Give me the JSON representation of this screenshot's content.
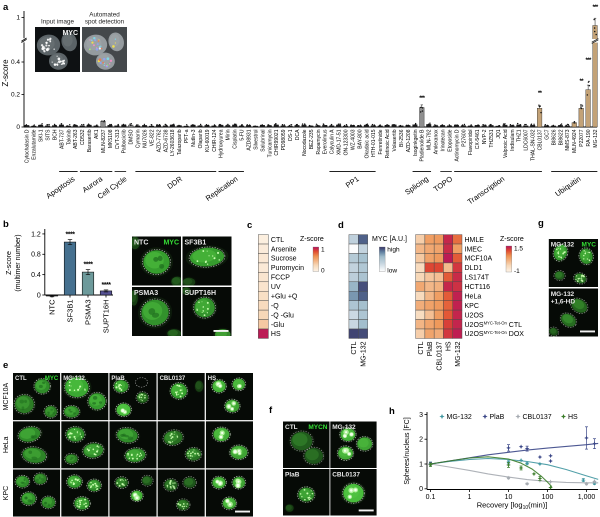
{
  "panels": {
    "a": {
      "label": "a"
    },
    "b": {
      "label": "b"
    },
    "c": {
      "label": "c"
    },
    "d": {
      "label": "d"
    },
    "e": {
      "label": "e"
    },
    "f": {
      "label": "f"
    },
    "g": {
      "label": "g"
    },
    "h": {
      "label": "h"
    }
  },
  "colors": {
    "bar_dark": "#1c1c1e",
    "bar_gray": "#8f8f8f",
    "bar_tan": "#c3a277",
    "b_bars": [
      "#1c1c1e",
      "#45708f",
      "#6d9a9b",
      "#565295"
    ],
    "h_series": [
      "#3f96a0",
      "#3a4687",
      "#a5aab0",
      "#3b7d2a"
    ],
    "micro_green": "#3fae36",
    "micro_label_green": "#35e035"
  },
  "panel_a_inset": {
    "left_title": "Input image",
    "right_title_line1": "Automated",
    "right_title_line2": "spot detection",
    "overlay_label": "MYC"
  },
  "chart_data": [
    {
      "id": "a",
      "type": "bar",
      "ylabel": "Z-score",
      "yticks": [
        {
          "v": 0,
          "t": "0"
        },
        {
          "v": 0.2,
          "t": "0.2"
        },
        {
          "v": 0.4,
          "t": "0.4"
        },
        {
          "v": 1,
          "t": "1"
        }
      ],
      "axis_break": true,
      "categories": [
        "Cytochalasin D",
        "Enzalutamide",
        "SKI-1",
        "SITS",
        "BCH",
        "ABT-737",
        "Takinib",
        "ABT-263",
        "CD532",
        "Barasertib",
        "AK1",
        "MLN-8237",
        "MK5108",
        "CVT-313",
        "Palbociclib",
        "DMSO",
        "Cymarin",
        "NU7026",
        "VE-822",
        "AZD-7762",
        "AZD-6738",
        "LY-2603618",
        "Talazoparib",
        "PFT-a",
        "Nutlin-3",
        "Olaparib",
        "KU-60019",
        "CHIR-124",
        "Hydroxyurea",
        "Mirin",
        "Cisplatin",
        "5-FU",
        "AZD8931",
        "Silvestrol",
        "Salubrinal",
        "Tunicamycin",
        "CHIR99021",
        "PD98059",
        "DS-1",
        "DCA",
        "Nocodazole",
        "BEZ-235",
        "Rapamycin",
        "Everolimus",
        "Calyculin A",
        "XMD-17-51",
        "ON-123300",
        "WZ-4003",
        "BAY-800",
        "Okadaic acid",
        "HTH-01-015",
        "Fenretinide",
        "Retinoic Acid",
        "Volasertib",
        "BI-2536",
        "AZD-1208",
        "Isoginkgetin",
        "Pladienolide B",
        "MLN-792",
        "Amlexanox",
        "Irinotecan",
        "Etoposide",
        "Actinomycin D",
        "P27600",
        "Flavopiridol",
        "CX-5461",
        "NVP-2",
        "THZ531",
        "JQ1",
        "Valproic Acid",
        "Indisulam",
        "THZ1",
        "LDC6007",
        "THAL-SN-032",
        "CBL0137",
        "GC7",
        "BI8626",
        "BI8622",
        "NMS-873",
        "MLN-4924",
        "P22077",
        "RA-190",
        "MG-132"
      ],
      "values": [
        0.01,
        0.006,
        0.012,
        0.007,
        0.009,
        0.013,
        0.006,
        0.01,
        0.008,
        0.012,
        0.007,
        0.035,
        0.011,
        0.008,
        0.013,
        0.012,
        0.007,
        0.01,
        0.006,
        0.011,
        0.008,
        0.013,
        0.009,
        0.006,
        0.012,
        0.008,
        0.01,
        0.007,
        0.012,
        0.009,
        0.013,
        0.007,
        0.01,
        0.006,
        0.011,
        0.009,
        0.013,
        0.008,
        0.006,
        0.01,
        0.012,
        0.007,
        0.009,
        0.011,
        0.008,
        0.013,
        0.006,
        0.01,
        0.008,
        0.012,
        0.009,
        0.007,
        0.011,
        0.013,
        0.008,
        0.01,
        0.014,
        0.12,
        0.016,
        0.007,
        0.01,
        0.008,
        0.012,
        0.009,
        0.007,
        0.011,
        0.008,
        0.01,
        0.006,
        0.012,
        0.009,
        0.013,
        0.008,
        0.011,
        0.115,
        0.009,
        0.007,
        0.01,
        0.008,
        0.027,
        0.115,
        0.23,
        0.95
      ],
      "bar_style": {
        "11": "gray",
        "15": "gray",
        "57": "gray",
        "74": "tan",
        "79": "tan",
        "80": "tan",
        "81": "tan",
        "82": "tan"
      },
      "errors": {
        "57": 0.016,
        "74": 0.013,
        "80": 0.022,
        "81": 0.028,
        "82": 0.045
      },
      "sig": {
        "57": "***",
        "74": "**",
        "80": "**",
        "81": "***",
        "82": "***"
      },
      "groups": [
        {
          "name": "Apoptosis",
          "start": 5,
          "end": 7
        },
        {
          "name": "Aurora",
          "start": 8,
          "end": 12
        },
        {
          "name": "Cell Cycle",
          "start": 13,
          "end": 14
        },
        {
          "name": "DDR",
          "start": 16,
          "end": 27
        },
        {
          "name": "Replication",
          "start": 28,
          "end": 31
        },
        {
          "name": "PP1",
          "start": 44,
          "end": 50
        },
        {
          "name": "Splicing",
          "start": 56,
          "end": 58
        },
        {
          "name": "TOPO",
          "start": 60,
          "end": 61
        },
        {
          "name": "Transcription",
          "start": 62,
          "end": 74
        },
        {
          "name": "Ubiquitin",
          "start": 76,
          "end": 82
        }
      ]
    },
    {
      "id": "b",
      "type": "bar",
      "ylabel_line1": "Z-score",
      "ylabel_line2": "(multimer number)",
      "yticks": [
        {
          "v": 0,
          "t": "0"
        },
        {
          "v": 0.4,
          "t": "0.4"
        },
        {
          "v": 0.8,
          "t": "0.8"
        },
        {
          "v": 1.2,
          "t": "1.2"
        }
      ],
      "categories": [
        "NTC",
        "SF3B1",
        "PSMA3",
        "SUPT16H"
      ],
      "values": [
        -0.02,
        1.04,
        0.45,
        0.08
      ],
      "errors": [
        0.015,
        0.05,
        0.05,
        0.02
      ],
      "sig": [
        "",
        "****",
        "****",
        "****"
      ]
    },
    {
      "id": "c",
      "type": "heatmap",
      "legend_title": "Z-score",
      "legend_max": "1",
      "legend_min": "0",
      "rows": [
        "CTL",
        "Arsenite",
        "Sucrose",
        "Puromycin",
        "FCCP",
        "UV",
        "+Glu +Q",
        "-Q",
        "-Q -Glu",
        "-Glu",
        "HS"
      ],
      "values": [
        0.04,
        0.07,
        0.1,
        0.09,
        0.13,
        0.14,
        0.18,
        0.22,
        0.25,
        0.33,
        0.97
      ]
    },
    {
      "id": "d_left",
      "type": "heatmap",
      "legend_title": "MYC [A.U.]",
      "legend_max": "high",
      "legend_min": "low",
      "columns": [
        "CTL",
        "MG-132"
      ],
      "rows": [
        "HMLE",
        "IMEC",
        "MCF10A",
        "DLD1",
        "LS174T",
        "HCT116",
        "HeLa",
        "KPC",
        "U2OS",
        "U2OS|MYC-Tet-On| CTL",
        "U2OS|MYC-Tet-On| DOX"
      ],
      "values": [
        [
          0.38,
          0.88
        ],
        [
          0.02,
          0.35
        ],
        [
          0.45,
          0.55
        ],
        [
          0.36,
          0.48
        ],
        [
          0.4,
          0.52
        ],
        [
          0.62,
          0.93
        ],
        [
          0.72,
          0.88
        ],
        [
          0.5,
          0.56
        ],
        [
          0.3,
          0.5
        ],
        [
          0.32,
          0.58
        ],
        [
          0.96,
          0.94
        ]
      ]
    },
    {
      "id": "d_right",
      "type": "heatmap",
      "legend_title": "Z-score",
      "legend_max": "1.5",
      "legend_min": "-1",
      "columns": [
        "CTL",
        "PlaB",
        "CBL0137",
        "HS",
        "MG-132"
      ],
      "rows": [
        "HMLE",
        "IMEC",
        "MCF10A",
        "DLD1",
        "LS174T",
        "HCT116",
        "HeLa",
        "KPC",
        "U2OS",
        "U2OS|MYC-Tet-On| CTL",
        "U2OS|MYC-Tet-On| DOX"
      ],
      "values": [
        [
          -0.25,
          0.38,
          0.43,
          1.33,
          0.8
        ],
        [
          0.05,
          0.25,
          0.3,
          1.3,
          0.38
        ],
        [
          -0.18,
          0.33,
          0.43,
          1.43,
          0.93
        ],
        [
          -0.45,
          1.08,
          1.08,
          0.0,
          1.2
        ],
        [
          -0.38,
          -0.13,
          -0.05,
          0.93,
          1.3
        ],
        [
          0.25,
          0.05,
          0.13,
          1.33,
          1.25
        ],
        [
          -0.45,
          0.05,
          0.38,
          0.93,
          1.38
        ],
        [
          0.18,
          0.33,
          0.43,
          0.88,
          1.38
        ],
        [
          -0.5,
          -0.05,
          0.4,
          0.95,
          1.35
        ],
        [
          0.08,
          0.3,
          0.45,
          1.13,
          1.35
        ],
        [
          -0.25,
          0.3,
          0.2,
          1.2,
          1.4
        ]
      ]
    },
    {
      "id": "h",
      "type": "line",
      "xlabel_pre": "Recovery [log",
      "xlabel_sub": "10",
      "xlabel_post": "(min)]",
      "ylabel": "Spheres/nucleus [FC]",
      "xticks": [
        {
          "v": 0.1,
          "t": "0.1"
        },
        {
          "v": 1,
          "t": "1"
        },
        {
          "v": 10,
          "t": "10"
        },
        {
          "v": 100,
          "t": "100"
        },
        {
          "v": 1000,
          "t": "1,000"
        }
      ],
      "yticks": [
        {
          "v": 0,
          "t": "0"
        },
        {
          "v": 1,
          "t": "1"
        },
        {
          "v": 2,
          "t": "2"
        },
        {
          "v": 3,
          "t": "3"
        }
      ],
      "series": [
        {
          "name": "MG-132",
          "color": "#3f96a0",
          "points": [
            [
              0.1,
              1.0,
              0.08
            ],
            [
              10,
              1.08,
              0.05
            ],
            [
              21,
              1.15,
              0
            ],
            [
              30,
              1.02,
              0.05
            ],
            [
              64,
              1.0,
              0
            ],
            [
              830,
              0.35,
              0.06
            ],
            [
              1600,
              0.22,
              0.05
            ]
          ],
          "curve": [
            [
              0.1,
              1.0
            ],
            [
              0.3,
              1.1
            ],
            [
              1,
              1.18
            ],
            [
              3,
              1.22
            ],
            [
              10,
              1.18
            ],
            [
              30,
              1.1
            ],
            [
              100,
              0.97
            ],
            [
              300,
              0.78
            ],
            [
              1000,
              0.52
            ],
            [
              2000,
              0.38
            ]
          ]
        },
        {
          "name": "PlaB",
          "color": "#3a4687",
          "points": [
            [
              0.1,
              1.0,
              0.07
            ],
            [
              10,
              1.65,
              0.13
            ],
            [
              21,
              1.7,
              0
            ],
            [
              30,
              1.62,
              0.1
            ],
            [
              64,
              1.28,
              0
            ],
            [
              120,
              1.33,
              0
            ],
            [
              120,
              1.12,
              0
            ],
            [
              1000,
              2.05,
              0.45
            ],
            [
              1600,
              1.82,
              0.2
            ]
          ],
          "curve": [
            [
              0.1,
              1.0
            ],
            [
              0.3,
              1.12
            ],
            [
              1,
              1.25
            ],
            [
              3,
              1.37
            ],
            [
              10,
              1.47
            ],
            [
              30,
              1.56
            ],
            [
              100,
              1.64
            ],
            [
              300,
              1.71
            ],
            [
              1000,
              1.78
            ],
            [
              2000,
              1.83
            ]
          ]
        },
        {
          "name": "CBL0137",
          "color": "#a5aab0",
          "points": [
            [
              0.1,
              0.98,
              0.05
            ],
            [
              10,
              0.44,
              0.04
            ],
            [
              30,
              0.2,
              0.03
            ],
            [
              64,
              0.33,
              0
            ],
            [
              120,
              0.28,
              0
            ],
            [
              1000,
              0.2,
              0.04
            ],
            [
              1600,
              0.3,
              0
            ]
          ],
          "curve": [
            [
              0.1,
              1.0
            ],
            [
              0.3,
              0.88
            ],
            [
              1,
              0.74
            ],
            [
              3,
              0.6
            ],
            [
              10,
              0.47
            ],
            [
              30,
              0.37
            ],
            [
              100,
              0.3
            ],
            [
              300,
              0.26
            ],
            [
              1000,
              0.24
            ],
            [
              2000,
              0.24
            ]
          ]
        },
        {
          "name": "HS",
          "color": "#3b7d2a",
          "points": [
            [
              0.1,
              0.97,
              0.07
            ],
            [
              10,
              0.96,
              0.1
            ],
            [
              21,
              0.84,
              0.08
            ],
            [
              45,
              0.6,
              0
            ],
            [
              64,
              0.42,
              0.08
            ],
            [
              120,
              0.05,
              0
            ]
          ],
          "curve": [
            [
              0.1,
              1.0
            ],
            [
              0.3,
              1.12
            ],
            [
              1,
              1.24
            ],
            [
              3,
              1.29
            ],
            [
              10,
              1.2
            ],
            [
              20,
              1.05
            ],
            [
              40,
              0.8
            ],
            [
              70,
              0.5
            ],
            [
              100,
              0.27
            ],
            [
              130,
              0.08
            ]
          ]
        }
      ]
    }
  ],
  "micrographs": {
    "b_tiles": [
      {
        "label": "NTC",
        "label2": "MYC"
      },
      {
        "label": "SF3B1"
      },
      {
        "label": "PSMA3"
      },
      {
        "label": "SUPT16H",
        "scalebar": true
      }
    ],
    "e_rows": [
      "MCF10A",
      "HeLa",
      "KPC"
    ],
    "e_cols": [
      "CTL",
      "MG-132",
      "PlaB",
      "CBL0137",
      "HS"
    ],
    "e_col0_label2": "MYC",
    "f_tiles": [
      {
        "label": "CTL",
        "label2": "MYCN"
      },
      {
        "label": "MG-132"
      },
      {
        "label": "PlaB"
      },
      {
        "label": "CBL0137",
        "scalebar": true
      }
    ],
    "g_tiles": [
      {
        "label": "MG-132",
        "label2": "MYC"
      },
      {
        "label": "MG-132",
        "sublabel": "+1,6-HD",
        "scalebar": true
      }
    ]
  }
}
